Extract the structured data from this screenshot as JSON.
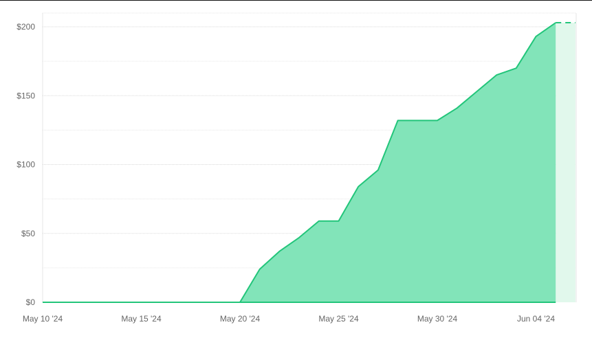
{
  "chart_data": {
    "type": "area",
    "title": "",
    "xlabel": "",
    "ylabel": "",
    "x_ticks": [
      "May 10 '24",
      "May 15 '24",
      "May 20 '24",
      "May 25 '24",
      "May 30 '24",
      "Jun 04 '24"
    ],
    "y_ticks": [
      "$0",
      "$50",
      "$100",
      "$150",
      "$200"
    ],
    "ylim": [
      0,
      210
    ],
    "grid": true,
    "dates": [
      "2024-05-10",
      "2024-05-11",
      "2024-05-12",
      "2024-05-13",
      "2024-05-14",
      "2024-05-15",
      "2024-05-16",
      "2024-05-17",
      "2024-05-18",
      "2024-05-19",
      "2024-05-20",
      "2024-05-21",
      "2024-05-22",
      "2024-05-23",
      "2024-05-24",
      "2024-05-25",
      "2024-05-26",
      "2024-05-27",
      "2024-05-28",
      "2024-05-29",
      "2024-05-30",
      "2024-05-31",
      "2024-06-01",
      "2024-06-02",
      "2024-06-03",
      "2024-06-04",
      "2024-06-05"
    ],
    "series": [
      {
        "values": [
          0,
          0,
          0,
          0,
          0,
          0,
          0,
          0,
          0,
          0,
          0,
          24,
          37,
          47,
          59,
          59,
          84,
          96,
          132,
          132,
          132,
          141,
          153,
          165,
          170,
          193,
          203
        ]
      }
    ],
    "projection": {
      "from": "2024-06-05",
      "to": "2024-06-06",
      "value": 203,
      "style": "dashed"
    },
    "colors": {
      "line": "#22c57a",
      "fill": "#82e4b9",
      "projection_fill": "#e1f8ec"
    }
  }
}
